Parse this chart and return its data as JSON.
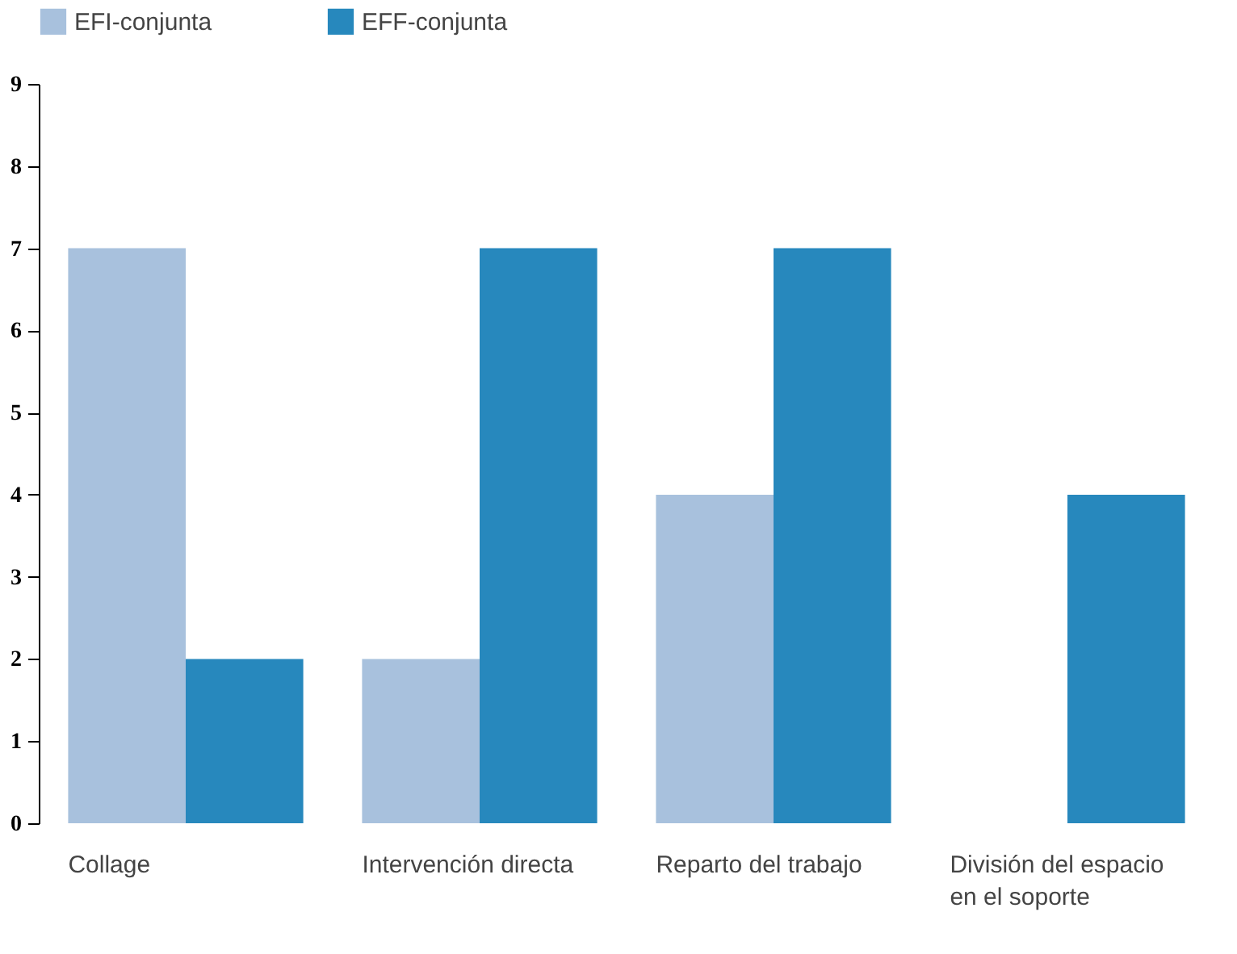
{
  "chart_data": {
    "type": "bar",
    "categories": [
      "Collage",
      "Intervención directa",
      "Reparto del trabajo",
      "División del espacio en el soporte"
    ],
    "series": [
      {
        "name": "EFI-conjunta",
        "color": "#a8c1dd",
        "values": [
          7,
          2,
          4,
          0
        ]
      },
      {
        "name": "EFF-conjunta",
        "color": "#2788bd",
        "values": [
          2,
          7,
          7,
          4
        ]
      }
    ],
    "ylim": [
      0,
      9
    ],
    "yticks": [
      0,
      1,
      2,
      3,
      4,
      5,
      6,
      7,
      8,
      9
    ],
    "grid": false,
    "legend": "top left"
  }
}
